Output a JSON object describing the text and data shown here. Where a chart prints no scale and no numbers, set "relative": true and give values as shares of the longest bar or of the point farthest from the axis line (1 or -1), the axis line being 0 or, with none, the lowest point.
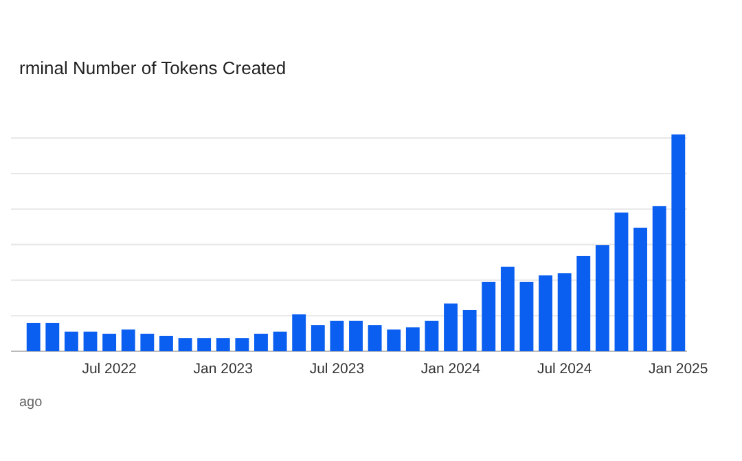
{
  "chart_data": {
    "type": "bar",
    "title": "rminal Number of Tokens Created",
    "categories": [
      null,
      null,
      null,
      null,
      "Jul 2022",
      null,
      null,
      null,
      null,
      null,
      "Jan 2023",
      null,
      null,
      null,
      null,
      null,
      "Jul 2023",
      null,
      null,
      null,
      null,
      null,
      "Jan 2024",
      null,
      null,
      null,
      null,
      null,
      "Jul 2024",
      null,
      null,
      null,
      null,
      null,
      "Jan 2025"
    ],
    "values": [
      0.13,
      0.13,
      0.09,
      0.09,
      0.08,
      0.1,
      0.08,
      0.07,
      0.06,
      0.06,
      0.06,
      0.06,
      0.08,
      0.09,
      0.17,
      0.12,
      0.14,
      0.14,
      0.12,
      0.1,
      0.11,
      0.14,
      0.22,
      0.19,
      0.32,
      0.39,
      0.32,
      0.35,
      0.36,
      0.44,
      0.49,
      0.64,
      0.57,
      0.67,
      1
    ],
    "color": "#0a5ff0",
    "relative": true,
    "grid": true,
    "annotations": [
      "ago"
    ]
  }
}
